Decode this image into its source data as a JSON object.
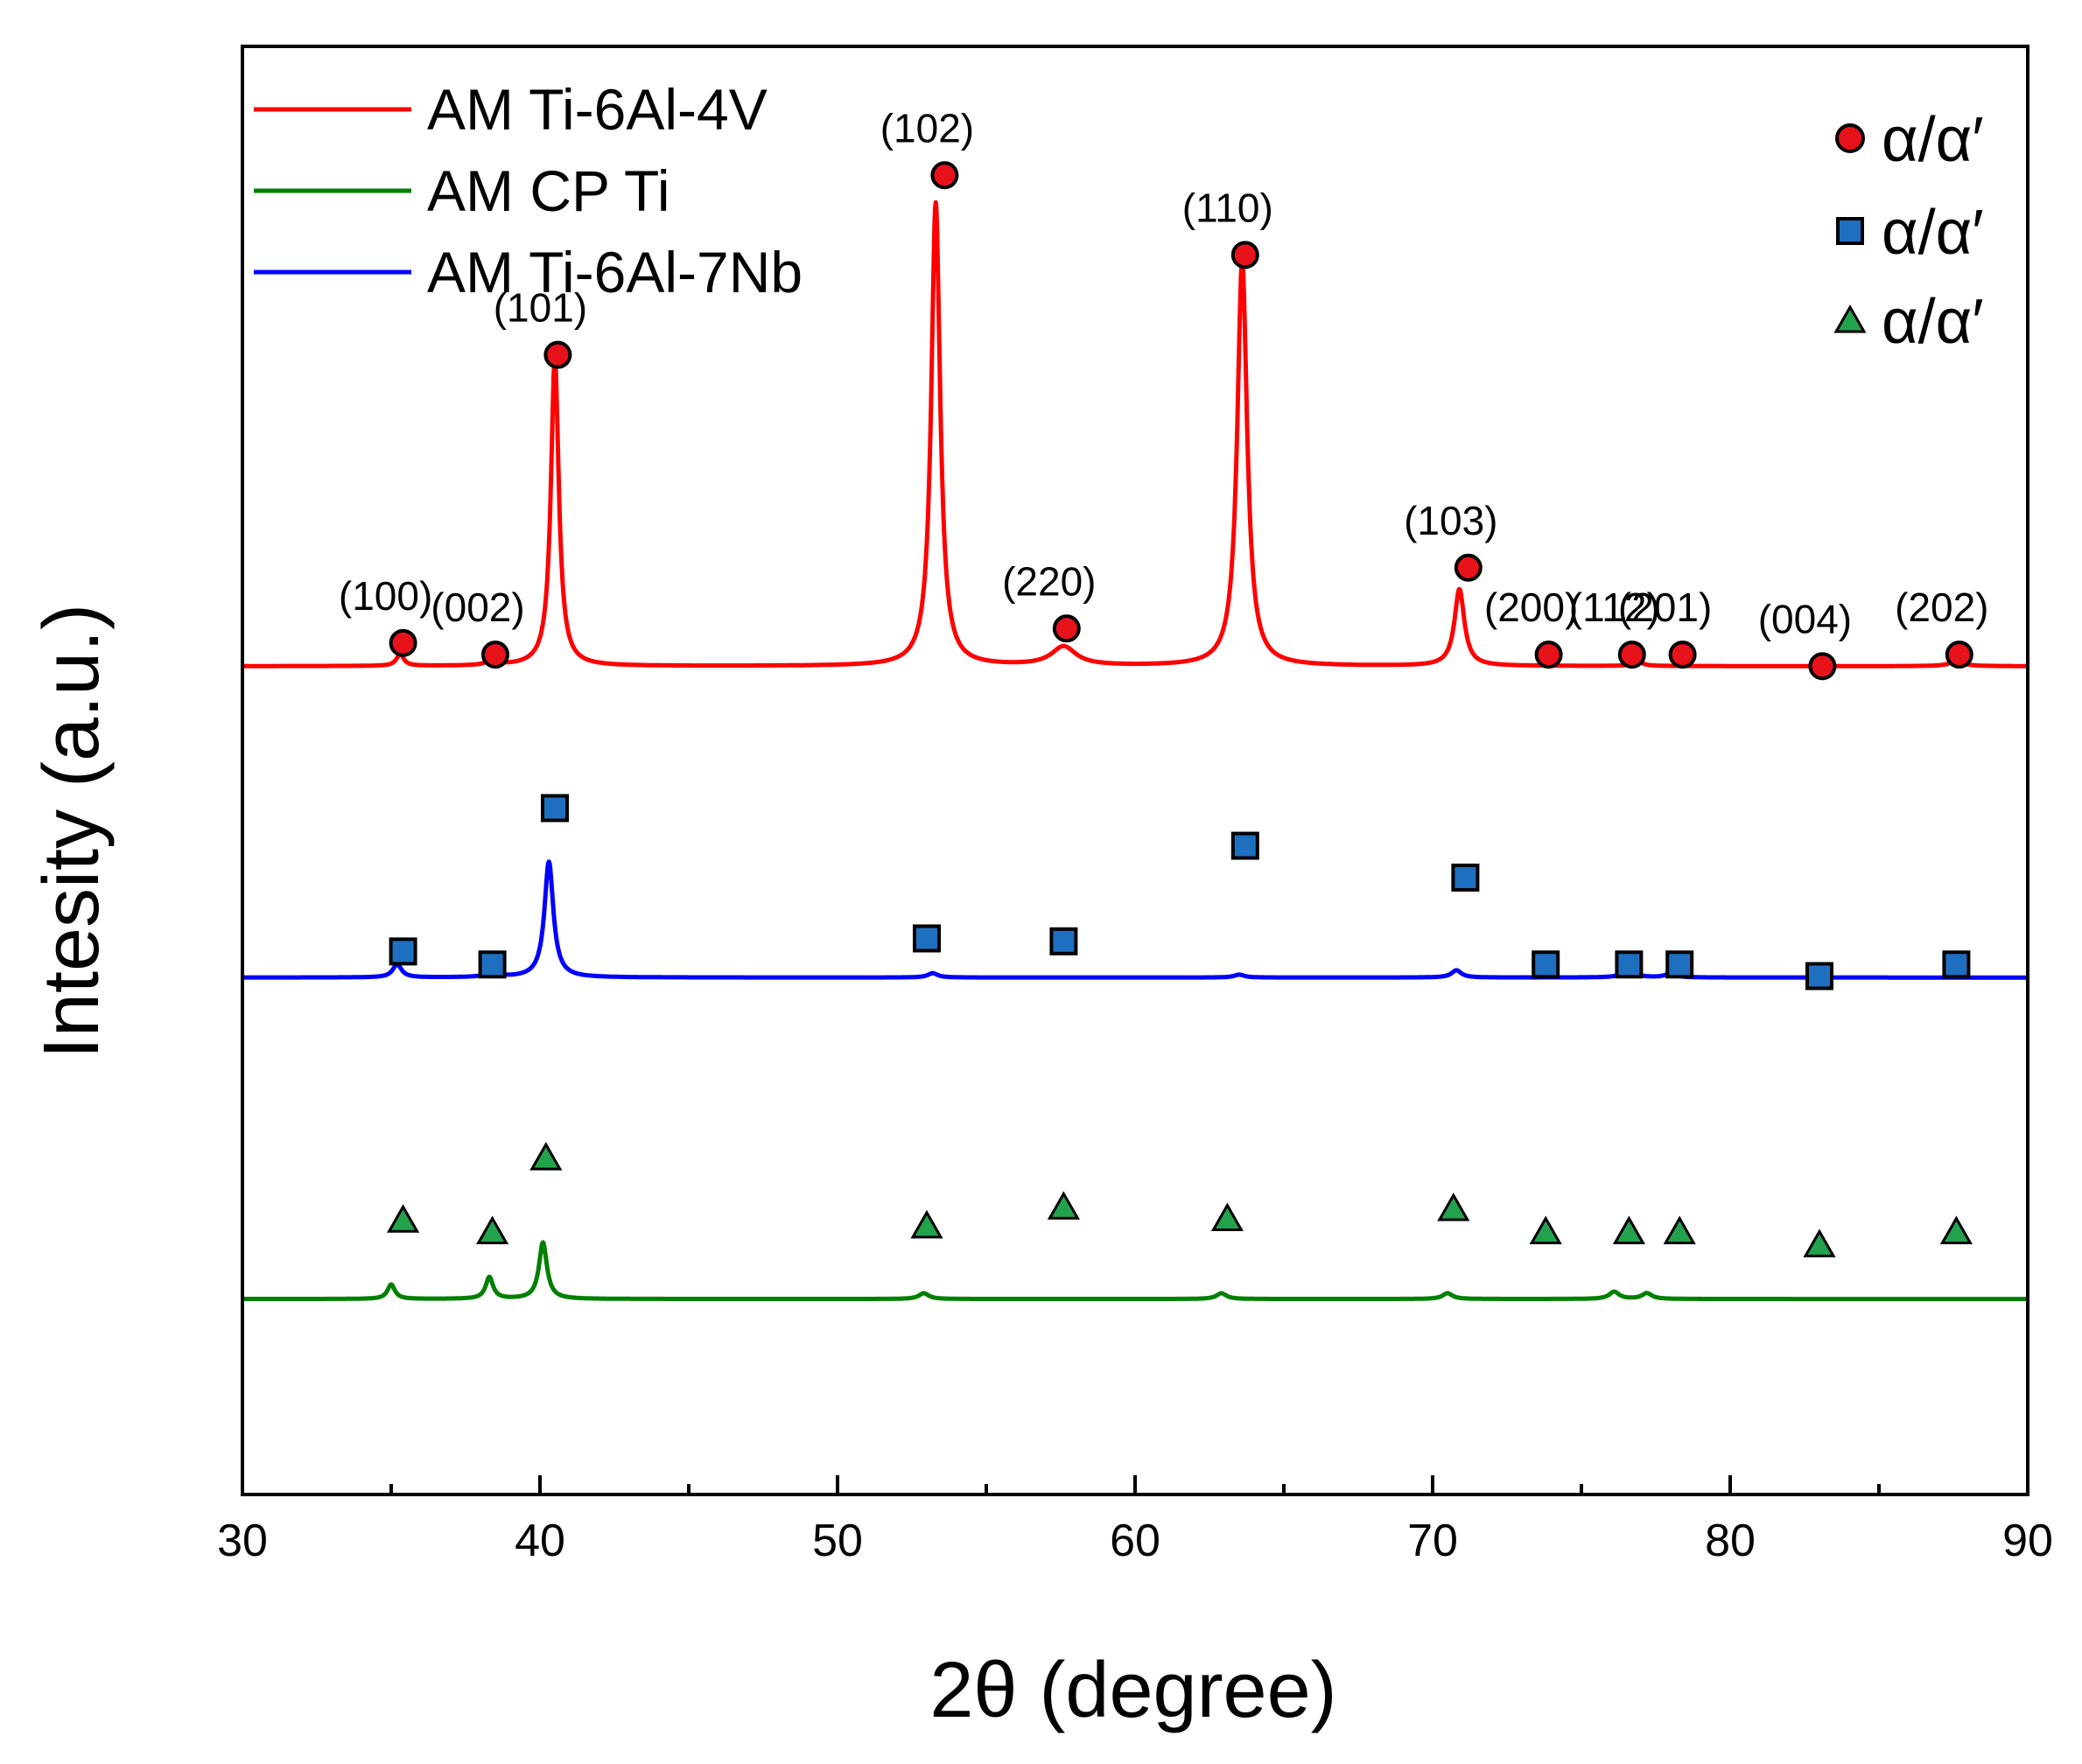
{
  "chart_data": {
    "type": "line",
    "title": "",
    "xlabel": "2θ (degree)",
    "ylabel": "Intesity (a.u.)",
    "xlim": [
      30,
      90
    ],
    "xticks": [
      30,
      40,
      50,
      60,
      70,
      80,
      90
    ],
    "xtick_labels": [
      "30",
      "40",
      "50",
      "60",
      "70",
      "80",
      "90"
    ],
    "ylim": [
      0,
      100
    ],
    "yticks_shown": false,
    "legend": {
      "position": "top-left",
      "entries": [
        {
          "label": "AM Ti-6Al-4V",
          "color": "#ff0000"
        },
        {
          "label": "AM CP Ti",
          "color": "#008000"
        },
        {
          "label": "AM Ti-6Al-7Nb",
          "color": "#0000ff"
        }
      ]
    },
    "marker_legend": {
      "position": "top-right",
      "entries": [
        {
          "shape": "circle",
          "label": "α/α′",
          "color": "#e8121b"
        },
        {
          "shape": "square",
          "label": "α/α′",
          "color": "#1f6fc1"
        },
        {
          "shape": "triangle",
          "label": "α/α′",
          "color": "#23a24d"
        }
      ]
    },
    "series": [
      {
        "name": "AM Ti-6Al-4V",
        "color": "#ff0000",
        "baseline": 57.2,
        "peaks": [
          {
            "x": 35.3,
            "height": 0.8,
            "width": 0.15
          },
          {
            "x": 38.4,
            "height": 0.6,
            "width": 0.15
          },
          {
            "x": 40.5,
            "height": 21.3,
            "width": 0.16
          },
          {
            "x": 53.3,
            "height": 32.0,
            "width": 0.18
          },
          {
            "x": 57.6,
            "height": 1.3,
            "width": 0.5
          },
          {
            "x": 63.6,
            "height": 28.0,
            "width": 0.2
          },
          {
            "x": 70.9,
            "height": 5.3,
            "width": 0.2
          },
          {
            "x": 76.9,
            "height": 0.3,
            "width": 0.2
          },
          {
            "x": 87.6,
            "height": 0.3,
            "width": 0.3
          }
        ]
      },
      {
        "name": "AM Ti-6Al-7Nb",
        "color": "#0000ff",
        "baseline": 35.7,
        "peaks": [
          {
            "x": 35.2,
            "height": 0.9,
            "width": 0.18
          },
          {
            "x": 38.4,
            "height": 0.6,
            "width": 0.18
          },
          {
            "x": 40.3,
            "height": 8.0,
            "width": 0.18
          },
          {
            "x": 53.2,
            "height": 0.3,
            "width": 0.2
          },
          {
            "x": 63.5,
            "height": 0.2,
            "width": 0.2
          },
          {
            "x": 70.8,
            "height": 0.5,
            "width": 0.2
          },
          {
            "x": 76.6,
            "height": 0.5,
            "width": 0.25
          },
          {
            "x": 78.0,
            "height": 0.3,
            "width": 0.2
          }
        ]
      },
      {
        "name": "AM CP Ti",
        "color": "#008000",
        "baseline": 13.5,
        "peaks": [
          {
            "x": 35.0,
            "height": 1.0,
            "width": 0.15
          },
          {
            "x": 38.3,
            "height": 1.5,
            "width": 0.15
          },
          {
            "x": 40.1,
            "height": 3.9,
            "width": 0.16
          },
          {
            "x": 52.9,
            "height": 0.4,
            "width": 0.2
          },
          {
            "x": 62.9,
            "height": 0.4,
            "width": 0.2
          },
          {
            "x": 70.5,
            "height": 0.4,
            "width": 0.2
          },
          {
            "x": 76.1,
            "height": 0.5,
            "width": 0.2
          },
          {
            "x": 77.2,
            "height": 0.4,
            "width": 0.2
          }
        ]
      }
    ],
    "peak_markers": {
      "circle": [
        {
          "x": 35.4,
          "y": 58.8,
          "label": "(100)"
        },
        {
          "x": 38.5,
          "y": 58.0,
          "label": "(002)"
        },
        {
          "x": 40.6,
          "y": 78.7,
          "label": "(101)"
        },
        {
          "x": 53.6,
          "y": 91.1,
          "label": "(102)"
        },
        {
          "x": 57.7,
          "y": 59.8,
          "label": "(220)"
        },
        {
          "x": 63.7,
          "y": 85.6,
          "label": "(110)"
        },
        {
          "x": 71.2,
          "y": 64.0,
          "label": "(103)"
        },
        {
          "x": 73.9,
          "y": 58.0,
          "label": "(200)"
        },
        {
          "x": 76.7,
          "y": 58.0,
          "label": "(112)"
        },
        {
          "x": 78.4,
          "y": 58.0,
          "label": "(201)"
        },
        {
          "x": 83.1,
          "y": 57.2,
          "label": "(004)"
        },
        {
          "x": 87.7,
          "y": 58.0,
          "label": "(202)"
        }
      ],
      "square": [
        {
          "x": 35.4,
          "y": 37.5
        },
        {
          "x": 38.4,
          "y": 36.6
        },
        {
          "x": 40.5,
          "y": 47.4
        },
        {
          "x": 53.0,
          "y": 38.4
        },
        {
          "x": 57.6,
          "y": 38.2
        },
        {
          "x": 63.7,
          "y": 44.8
        },
        {
          "x": 71.1,
          "y": 42.6
        },
        {
          "x": 73.8,
          "y": 36.6
        },
        {
          "x": 76.6,
          "y": 36.6
        },
        {
          "x": 78.3,
          "y": 36.6
        },
        {
          "x": 83.0,
          "y": 35.8
        },
        {
          "x": 87.6,
          "y": 36.6
        }
      ],
      "triangle": [
        {
          "x": 35.4,
          "y": 18.9
        },
        {
          "x": 38.4,
          "y": 18.1
        },
        {
          "x": 40.2,
          "y": 23.2
        },
        {
          "x": 53.0,
          "y": 18.5
        },
        {
          "x": 57.6,
          "y": 19.8
        },
        {
          "x": 63.1,
          "y": 19.0
        },
        {
          "x": 70.7,
          "y": 19.7
        },
        {
          "x": 73.8,
          "y": 18.1
        },
        {
          "x": 76.6,
          "y": 18.1
        },
        {
          "x": 78.3,
          "y": 18.1
        },
        {
          "x": 83.0,
          "y": 17.2
        },
        {
          "x": 87.6,
          "y": 18.1
        }
      ]
    }
  }
}
